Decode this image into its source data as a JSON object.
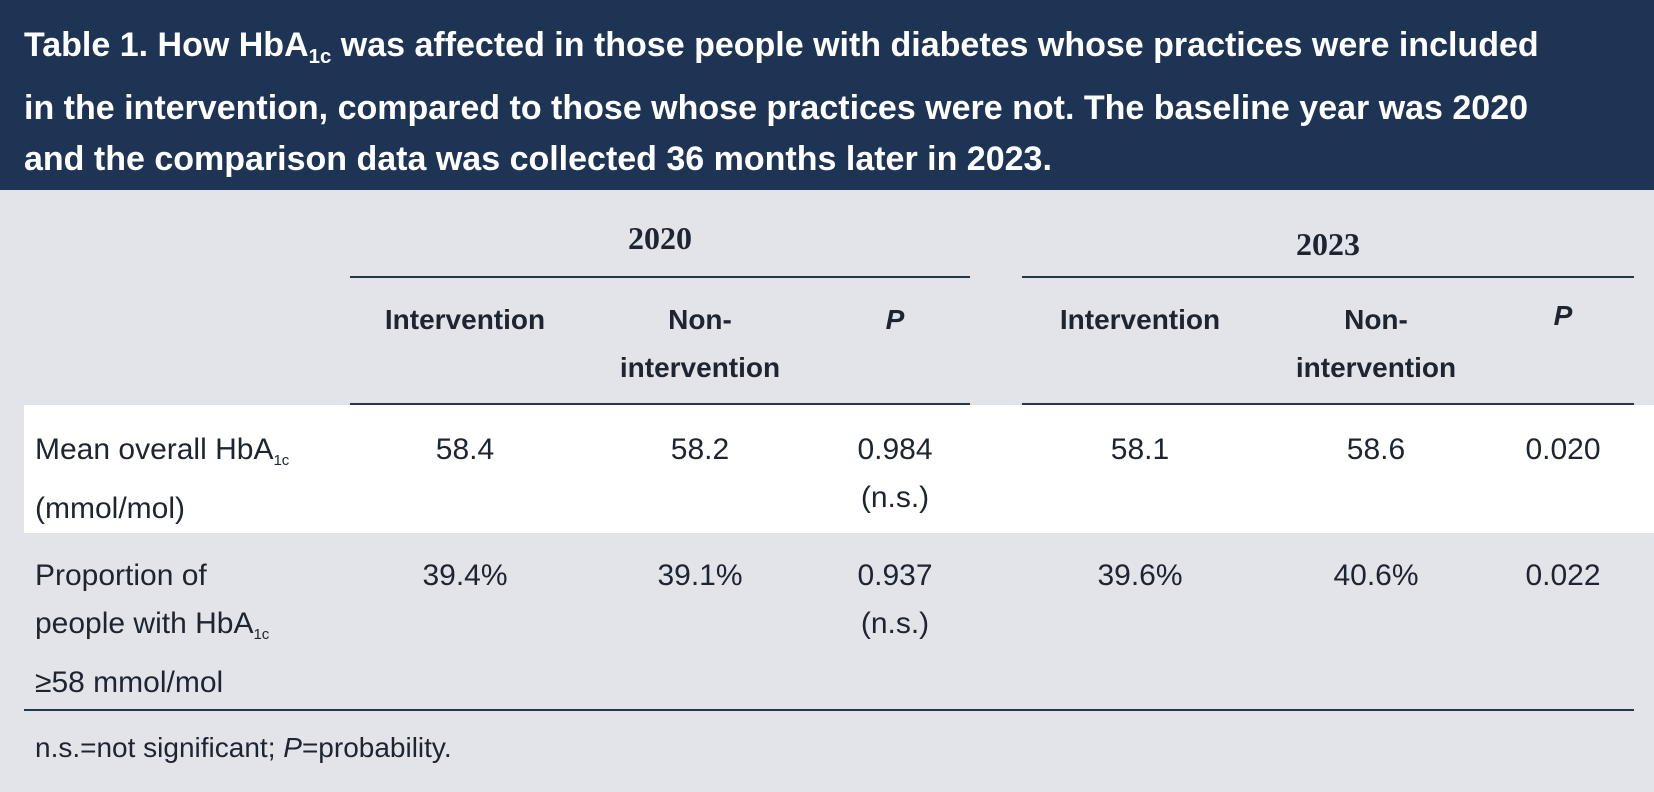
{
  "caption": {
    "lead": "Table 1. How HbA",
    "subscript": "1c",
    "rest_line1": " was affected in those people with diabetes whose practices were included",
    "line2": "in the intervention, compared to those whose practices were not. The baseline year was 2020",
    "line3": "and the comparison data was collected 36 months later in 2023."
  },
  "table": {
    "years": [
      "2020",
      "2023"
    ],
    "column_headers": {
      "intervention": "Intervention",
      "non_intervention_line1": "Non-",
      "non_intervention_line2": "intervention",
      "p": "P"
    },
    "rows": [
      {
        "label_line1_main": "Mean overall HbA",
        "label_line1_sub": "1c",
        "label_line2": "(mmol/mol)",
        "label_line3": "",
        "y2020_intervention": "58.4",
        "y2020_non_intervention": "58.2",
        "y2020_p": "0.984",
        "y2020_p_note": "(n.s.)",
        "y2023_intervention": "58.1",
        "y2023_non_intervention": "58.6",
        "y2023_p": "0.020"
      },
      {
        "label_line1_main": "Proportion of",
        "label_line2_main": "people with HbA",
        "label_line2_sub": "1c",
        "label_line3": "≥58 mmol/mol",
        "y2020_intervention": "39.4%",
        "y2020_non_intervention": "39.1%",
        "y2020_p": "0.937",
        "y2020_p_note": "(n.s.)",
        "y2023_intervention": "39.6%",
        "y2023_non_intervention": "40.6%",
        "y2023_p": "0.022"
      }
    ]
  },
  "footnote": {
    "part1": "n.s.=not significant; ",
    "p_symbol": "P",
    "part2": "=probability."
  }
}
